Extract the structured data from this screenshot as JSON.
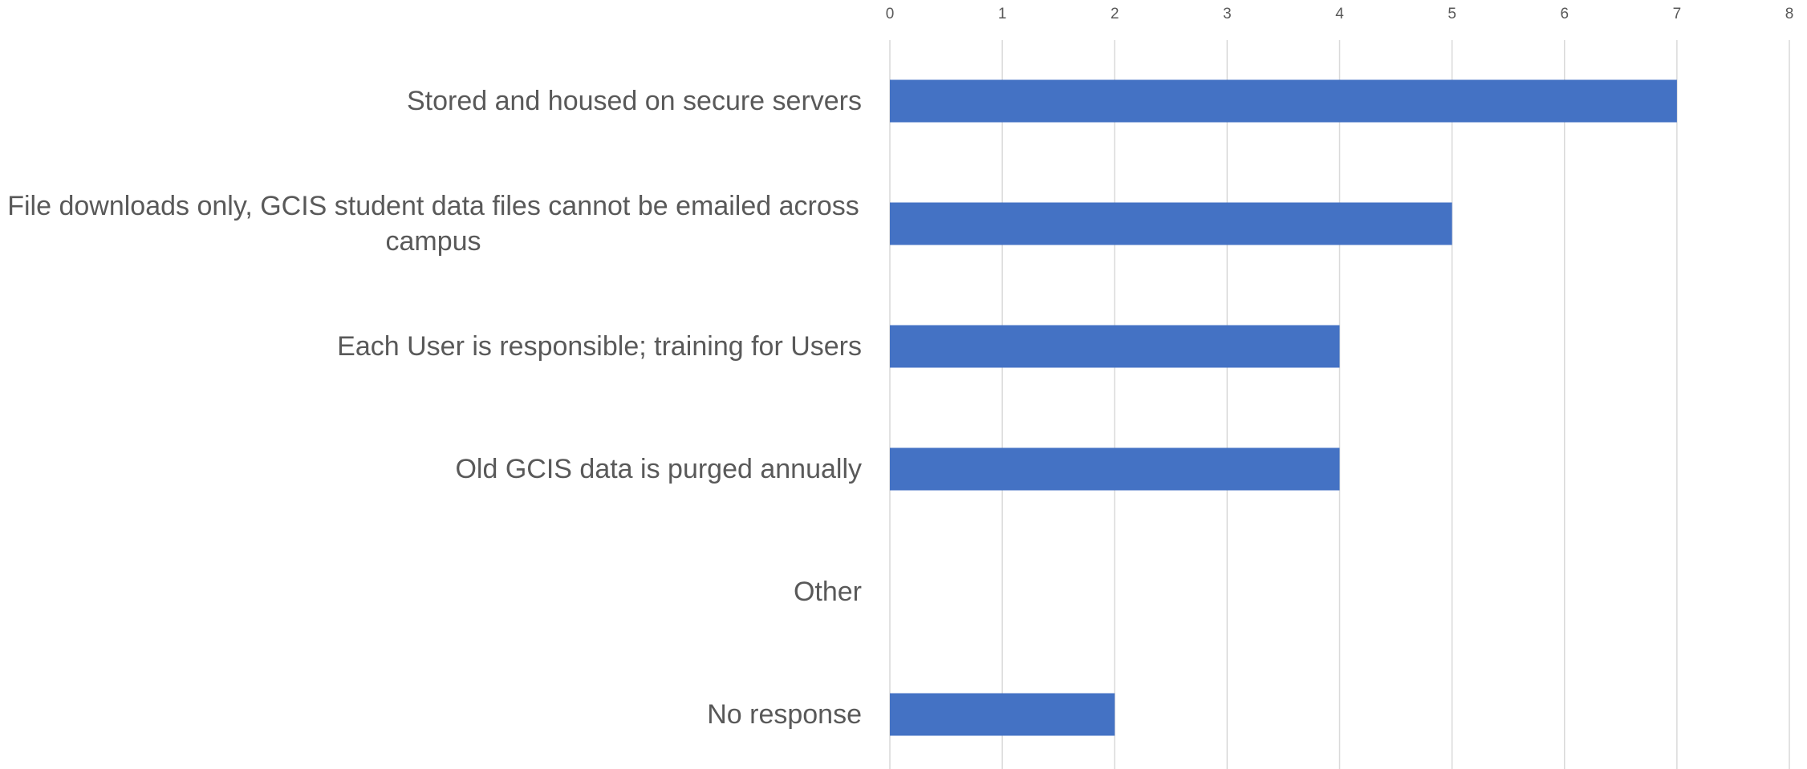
{
  "chart_data": {
    "type": "bar",
    "orientation": "horizontal",
    "categories": [
      "Stored and housed on secure servers",
      "File downloads only, GCIS student data files cannot be emailed across campus",
      "Each User is responsible; training for Users",
      "Old GCIS data is purged annually",
      "Other",
      "No response"
    ],
    "values": [
      7,
      5,
      4,
      4,
      0,
      2
    ],
    "color": "#4472c4",
    "xlim": [
      0,
      8
    ],
    "xticks": [
      0,
      1,
      2,
      3,
      4,
      5,
      6,
      7,
      8
    ],
    "grid": true
  }
}
